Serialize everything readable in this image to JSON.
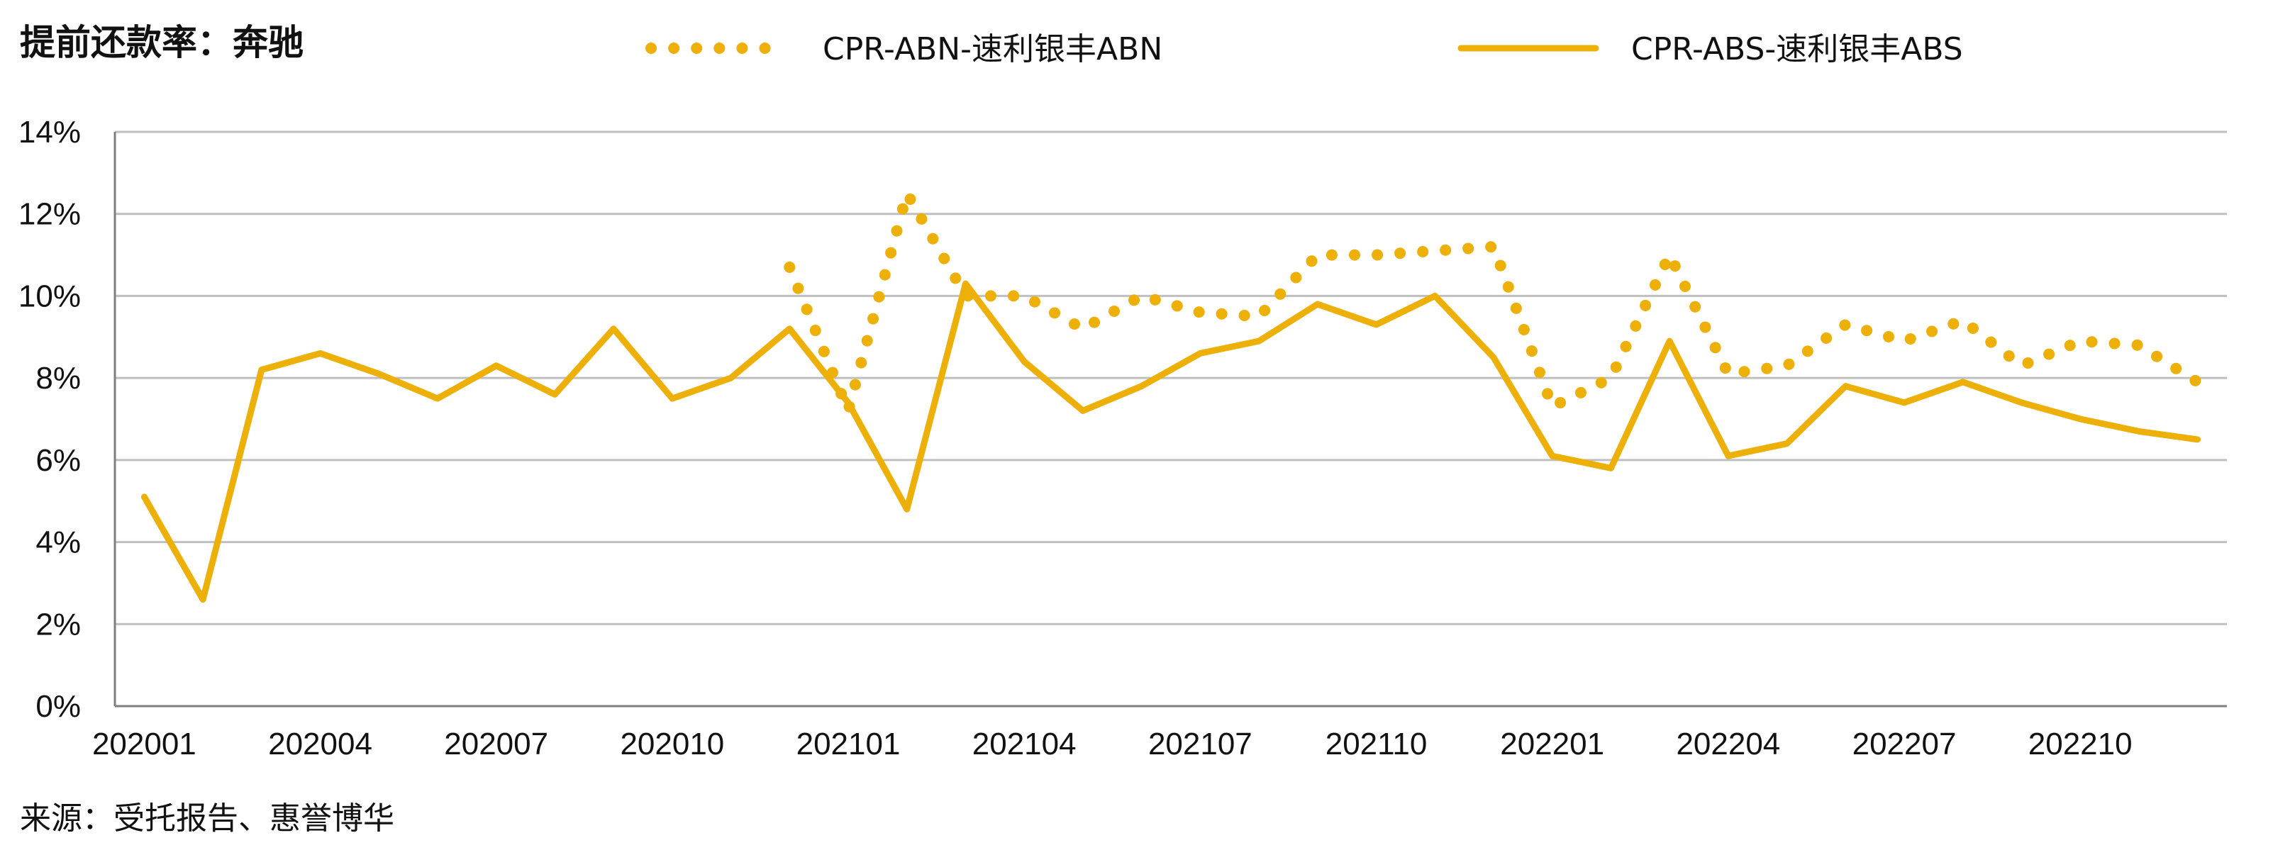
{
  "title": "提前还款率：奔驰",
  "source": "来源：受托报告、惠誉博华",
  "colors": {
    "series": "#EDB008",
    "grid": "#BFBFBF",
    "axis": "#7F7F7F",
    "text": "#111111"
  },
  "chart_data": {
    "type": "line",
    "title": "提前还款率：奔驰",
    "xlabel": "",
    "ylabel": "",
    "ylim": [
      0,
      14
    ],
    "y_ticks": [
      "0%",
      "2%",
      "4%",
      "6%",
      "8%",
      "10%",
      "12%",
      "14%"
    ],
    "grid": true,
    "legend_position": "top",
    "x": [
      "202001",
      "202002",
      "202003",
      "202004",
      "202005",
      "202006",
      "202007",
      "202008",
      "202009",
      "202010",
      "202011",
      "202012",
      "202101",
      "202102",
      "202103",
      "202104",
      "202105",
      "202106",
      "202107",
      "202108",
      "202109",
      "202110",
      "202111",
      "202112",
      "202201",
      "202202",
      "202203",
      "202204",
      "202205",
      "202206",
      "202207",
      "202208",
      "202209",
      "202210",
      "202211",
      "202212"
    ],
    "x_tick_labels": [
      "202001",
      "202004",
      "202007",
      "202010",
      "202101",
      "202104",
      "202107",
      "202110",
      "202201",
      "202204",
      "202207",
      "202210"
    ],
    "series": [
      {
        "name": "CPR-ABN-速利银丰ABN",
        "style": "dotted",
        "values": [
          null,
          null,
          null,
          null,
          null,
          null,
          null,
          null,
          null,
          null,
          null,
          10.7,
          7.2,
          12.5,
          10.0,
          10.0,
          9.2,
          10.0,
          9.6,
          9.5,
          11.0,
          11.0,
          11.1,
          11.2,
          7.3,
          8.0,
          11.0,
          8.1,
          8.3,
          9.3,
          8.9,
          9.4,
          8.3,
          8.9,
          8.8,
          7.9
        ]
      },
      {
        "name": "CPR-ABS-速利银丰ABS",
        "style": "solid",
        "values": [
          5.1,
          2.6,
          8.2,
          8.6,
          8.1,
          7.5,
          8.3,
          7.6,
          9.2,
          7.5,
          8.0,
          9.2,
          7.4,
          4.8,
          10.3,
          8.4,
          7.2,
          7.8,
          8.6,
          8.9,
          9.8,
          9.3,
          10.0,
          8.5,
          6.1,
          5.8,
          8.9,
          6.1,
          6.4,
          7.8,
          7.4,
          7.9,
          7.4,
          7.0,
          6.7,
          6.5
        ]
      }
    ]
  }
}
